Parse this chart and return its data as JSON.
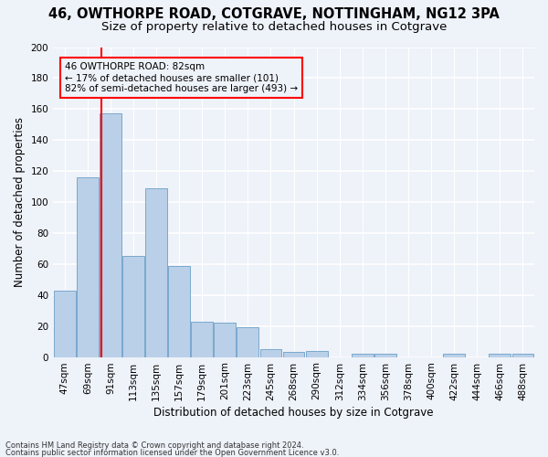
{
  "title1": "46, OWTHORPE ROAD, COTGRAVE, NOTTINGHAM, NG12 3PA",
  "title2": "Size of property relative to detached houses in Cotgrave",
  "xlabel": "Distribution of detached houses by size in Cotgrave",
  "ylabel": "Number of detached properties",
  "categories": [
    "47sqm",
    "69sqm",
    "91sqm",
    "113sqm",
    "135sqm",
    "157sqm",
    "179sqm",
    "201sqm",
    "223sqm",
    "245sqm",
    "268sqm",
    "290sqm",
    "312sqm",
    "334sqm",
    "356sqm",
    "378sqm",
    "400sqm",
    "422sqm",
    "444sqm",
    "466sqm",
    "488sqm"
  ],
  "values": [
    43,
    116,
    157,
    65,
    109,
    59,
    23,
    22,
    19,
    5,
    3,
    4,
    0,
    2,
    2,
    0,
    0,
    2,
    0,
    2,
    2
  ],
  "bar_color": "#bad0e8",
  "bar_edge_color": "#6a9fc8",
  "ylim": [
    0,
    200
  ],
  "yticks": [
    0,
    20,
    40,
    60,
    80,
    100,
    120,
    140,
    160,
    180,
    200
  ],
  "property_label": "46 OWTHORPE ROAD: 82sqm",
  "annotation_line1": "← 17% of detached houses are smaller (101)",
  "annotation_line2": "82% of semi-detached houses are larger (493) →",
  "footer1": "Contains HM Land Registry data © Crown copyright and database right 2024.",
  "footer2": "Contains public sector information licensed under the Open Government Licence v3.0.",
  "background_color": "#eef2f9",
  "grid_color": "#ffffff",
  "title_fontsize": 10.5,
  "subtitle_fontsize": 9.5,
  "axis_label_fontsize": 8.5,
  "tick_fontsize": 7.5,
  "footer_fontsize": 6.0,
  "annot_fontsize": 7.5
}
